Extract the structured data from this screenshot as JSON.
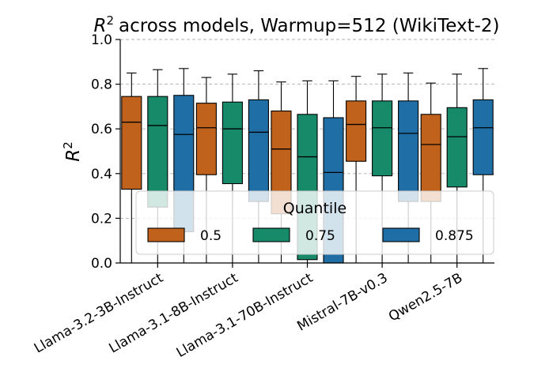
{
  "chart_data": {
    "type": "box",
    "title": "across models, Warmup=512 (WikiText-2)",
    "title_symbol": "R",
    "title_superscript": "2",
    "ylabel_symbol": "R",
    "ylabel_superscript": "2",
    "xlabel": "",
    "ylim": [
      0.0,
      1.0
    ],
    "yticks": [
      "0.0",
      "0.2",
      "0.4",
      "0.6",
      "0.8",
      "1.0"
    ],
    "grid": "horizontal dashed",
    "categories": [
      "Llama-3.2-3B-Instruct",
      "Llama-3.1-8B-Instruct",
      "Llama-3.1-70B-Instruct",
      "Mistral-7B-v0.3",
      "Qwen2.5-7B"
    ],
    "legend": {
      "title": "Quantile",
      "placement": "lower-center"
    },
    "colors": {
      "0.5": "#c0611c",
      "0.75": "#178a6a",
      "0.875": "#1f6fa6",
      "grid": "#b0b0b0"
    },
    "series": [
      {
        "name": "0.5",
        "color": "#c0611c",
        "boxes": [
          {
            "whislo": 0.0,
            "q1": 0.33,
            "median": 0.63,
            "q3": 0.745,
            "whishi": 0.85
          },
          {
            "whislo": 0.0,
            "q1": 0.395,
            "median": 0.605,
            "q3": 0.715,
            "whishi": 0.83
          },
          {
            "whislo": 0.0,
            "q1": 0.22,
            "median": 0.51,
            "q3": 0.68,
            "whishi": 0.81
          },
          {
            "whislo": 0.0,
            "q1": 0.455,
            "median": 0.62,
            "q3": 0.725,
            "whishi": 0.835
          },
          {
            "whislo": 0.0,
            "q1": 0.275,
            "median": 0.53,
            "q3": 0.665,
            "whishi": 0.805
          }
        ]
      },
      {
        "name": "0.75",
        "color": "#178a6a",
        "boxes": [
          {
            "whislo": 0.0,
            "q1": 0.25,
            "median": 0.615,
            "q3": 0.745,
            "whishi": 0.865
          },
          {
            "whislo": 0.0,
            "q1": 0.355,
            "median": 0.6,
            "q3": 0.72,
            "whishi": 0.845
          },
          {
            "whislo": 0.0,
            "q1": 0.015,
            "median": 0.475,
            "q3": 0.665,
            "whishi": 0.815
          },
          {
            "whislo": 0.0,
            "q1": 0.39,
            "median": 0.605,
            "q3": 0.725,
            "whishi": 0.845
          },
          {
            "whislo": 0.0,
            "q1": 0.34,
            "median": 0.565,
            "q3": 0.695,
            "whishi": 0.845
          }
        ]
      },
      {
        "name": "0.875",
        "color": "#1f6fa6",
        "boxes": [
          {
            "whislo": 0.0,
            "q1": 0.14,
            "median": 0.575,
            "q3": 0.75,
            "whishi": 0.87
          },
          {
            "whislo": 0.0,
            "q1": 0.275,
            "median": 0.585,
            "q3": 0.73,
            "whishi": 0.86
          },
          {
            "whislo": 0.0,
            "q1": 0.0,
            "median": 0.405,
            "q3": 0.65,
            "whishi": 0.815
          },
          {
            "whislo": 0.0,
            "q1": 0.275,
            "median": 0.58,
            "q3": 0.725,
            "whishi": 0.85
          },
          {
            "whislo": 0.0,
            "q1": 0.395,
            "median": 0.605,
            "q3": 0.73,
            "whishi": 0.87
          }
        ]
      }
    ]
  }
}
